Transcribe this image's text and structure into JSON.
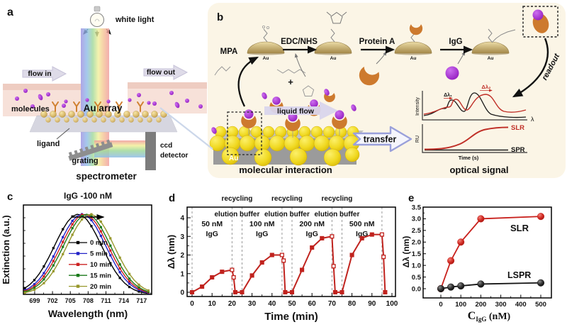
{
  "colors": {
    "panel_b_bg": "#fbf5e6",
    "red_accent": "#c0231e",
    "crescent_orange": "#cd7a2e",
    "igg_purple": "#9b22c8",
    "gray_label": "#8f8f8f"
  },
  "panels": {
    "a": {
      "label": "a",
      "white_light": "white light",
      "flow_in": "flow in",
      "flow_out": "flow out",
      "molecules": "molecules",
      "au_array": "Au array",
      "ligand": "ligand",
      "grating": "grating",
      "ccd_line1": "ccd",
      "ccd_line2": "detector",
      "spectrometer": "spectrometer"
    },
    "b": {
      "label": "b",
      "mpa": "MPA",
      "edc_nhs": "EDC/NHS",
      "protein_a": "Protein A",
      "igg": "IgG",
      "plus": "+",
      "au": "Au",
      "au_slab": "Au",
      "readout": "readout",
      "liquid_flow": "liquid flow",
      "transfer": "transfer",
      "molecular_interaction": "molecular interaction",
      "optical_signal": "optical signal",
      "intensity": "Intensity",
      "lambda": "λ",
      "ru": "RU",
      "time_s": "Time (s)",
      "slr": "SLR",
      "spr": "SPR",
      "dlambda1": "Δλ₁",
      "dlambda2": "Δλ₂"
    },
    "c": {
      "label": "c"
    },
    "d": {
      "label": "d"
    },
    "e": {
      "label": "e"
    }
  },
  "chart_data": [
    {
      "panel": "c",
      "type": "line",
      "title": "IgG -100 nM",
      "xlabel": "Wavelength (nm)",
      "ylabel": "Extinction (a.u.)",
      "xlim": [
        697.1,
        718.7
      ],
      "xticks": [
        699,
        702,
        705,
        708,
        711,
        714,
        717
      ],
      "yaxis_note": "arbitrary units, no numeric ticks",
      "annotation": "arrow indicating red-shift of peak with time",
      "curve_shape": {
        "profile": "gaussian",
        "sigma_nm": 5.6,
        "peak_height": 1.0
      },
      "series": [
        {
          "name": "0 min",
          "color": "#000000",
          "peak_nm": 706.3
        },
        {
          "name": "5 min",
          "color": "#2323c8",
          "peak_nm": 707.0
        },
        {
          "name": "10 min",
          "color": "#cc2222",
          "peak_nm": 707.4
        },
        {
          "name": "15 min",
          "color": "#1b7a1b",
          "peak_nm": 707.8
        },
        {
          "name": "20 min",
          "color": "#97972b",
          "peak_nm": 708.4
        }
      ]
    },
    {
      "panel": "d",
      "type": "line",
      "xlabel": "Time (min)",
      "ylabel": "Δλ (nm)",
      "xlim": [
        -2.5,
        101.8
      ],
      "ylim": [
        -0.25,
        4.6
      ],
      "xticks": [
        0,
        10,
        20,
        30,
        40,
        50,
        60,
        70,
        80,
        90,
        100
      ],
      "yticks": [
        0,
        1,
        2,
        3,
        4
      ],
      "color": "#c0231e",
      "points": [
        [
          0,
          0
        ],
        [
          5,
          0.3
        ],
        [
          10,
          0.8
        ],
        [
          15,
          1.1
        ],
        [
          20,
          1.2
        ],
        [
          20.8,
          0.8
        ],
        [
          21.6,
          0
        ],
        [
          25,
          0
        ],
        [
          30,
          0.9
        ],
        [
          35,
          1.6
        ],
        [
          40,
          2.0
        ],
        [
          45,
          2.0
        ],
        [
          45.8,
          1.7
        ],
        [
          46.6,
          0
        ],
        [
          50,
          0
        ],
        [
          55,
          1.2
        ],
        [
          60,
          2.4
        ],
        [
          65,
          2.9
        ],
        [
          70,
          3.0
        ],
        [
          70.8,
          1.4
        ],
        [
          71.6,
          0
        ],
        [
          75,
          0
        ],
        [
          80,
          2.0
        ],
        [
          85,
          2.9
        ],
        [
          90,
          3.1
        ],
        [
          95,
          3.1
        ],
        [
          95.8,
          1.9
        ],
        [
          96.6,
          0
        ]
      ],
      "open_marker_t": [
        20,
        20.8,
        45,
        45.8,
        70,
        70.8,
        95,
        95.8
      ],
      "dashed_lines_x": [
        0,
        20,
        25,
        45,
        50,
        70,
        75,
        95
      ],
      "recycling_text": "recycling",
      "elution_text": "elution buffer",
      "recycling_x": [
        22.5,
        47.5,
        72.5
      ],
      "cycle_labels": [
        {
          "line1": "50 nM",
          "line2": "IgG",
          "x": 10
        },
        {
          "line1": "100 nM",
          "line2": "IgG",
          "x": 35
        },
        {
          "line1": "200 nM",
          "line2": "IgG",
          "x": 60
        },
        {
          "line1": "500 nM",
          "line2": "IgG",
          "x": 85
        }
      ]
    },
    {
      "panel": "e",
      "type": "scatter-line",
      "xlabel": "C_IgG (nM)",
      "xlabel_parts": [
        "C",
        "IgG",
        " (nM)"
      ],
      "ylabel": "Δλ (nm)",
      "xlim": [
        -88,
        555
      ],
      "ylim": [
        -0.4,
        3.57
      ],
      "xticks": [
        0,
        100,
        200,
        300,
        400,
        500
      ],
      "yticks": [
        "0.0",
        "0.5",
        "1.0",
        "1.5",
        "2.0",
        "2.5",
        "3.0",
        "3.5"
      ],
      "series": [
        {
          "name": "SLR",
          "color": "#c8201c",
          "x": [
            0,
            50,
            100,
            200,
            500
          ],
          "y": [
            0,
            1.2,
            2.0,
            3.0,
            3.1
          ]
        },
        {
          "name": "LSPR",
          "color": "#141414",
          "x": [
            0,
            50,
            100,
            200,
            500
          ],
          "y": [
            0,
            0.07,
            0.12,
            0.2,
            0.25
          ]
        }
      ]
    }
  ]
}
